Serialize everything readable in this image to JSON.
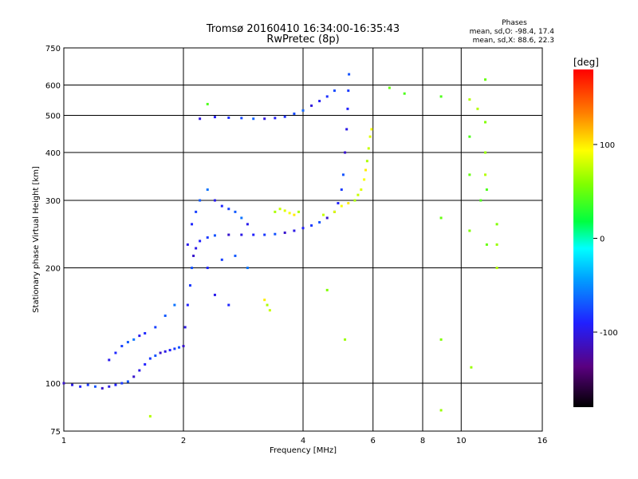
{
  "chart_data": {
    "type": "scatter",
    "title": "Tromsø 20160410 16:34:00-16:35:43",
    "subtitle": "RwPretec (8p)",
    "xlabel": "Frequency [MHz]",
    "ylabel": "Stationary phase Virtual Height [km]",
    "x_scale": "log",
    "y_scale": "log",
    "xlim": [
      1,
      16
    ],
    "ylim": [
      75,
      750
    ],
    "x_ticks": [
      1,
      2,
      4,
      6,
      8,
      10,
      16
    ],
    "x_tick_labels": [
      "1",
      "2",
      "4",
      "6",
      "8",
      "10",
      "16"
    ],
    "y_ticks": [
      75,
      100,
      200,
      300,
      400,
      500,
      600,
      750
    ],
    "y_tick_labels": [
      "75",
      "100",
      "200",
      "300",
      "400",
      "500",
      "600",
      "750"
    ],
    "grid": true,
    "phases": {
      "heading": "Phases",
      "line_o": "mean, sd,O: -98.4, 17.4",
      "line_x": "mean, sd,X: 88.6, 22.3"
    },
    "colorbar": {
      "label": "[deg]",
      "range": [
        -180,
        180
      ],
      "ticks": [
        100,
        0,
        -100
      ],
      "tick_labels": [
        "100",
        "0",
        "-100"
      ]
    },
    "series": [
      {
        "color_group": "blue-purple",
        "phase_deg": -100,
        "points": [
          [
            1.0,
            100
          ],
          [
            1.05,
            99
          ],
          [
            1.1,
            98
          ],
          [
            1.15,
            99
          ],
          [
            1.2,
            98
          ],
          [
            1.25,
            97
          ],
          [
            1.3,
            98
          ],
          [
            1.35,
            99
          ],
          [
            1.4,
            100
          ],
          [
            1.45,
            101
          ],
          [
            1.5,
            104
          ],
          [
            1.55,
            108
          ],
          [
            1.6,
            112
          ],
          [
            1.65,
            116
          ],
          [
            1.7,
            118
          ],
          [
            1.75,
            120
          ],
          [
            1.8,
            121
          ],
          [
            1.85,
            122
          ],
          [
            1.9,
            123
          ],
          [
            1.95,
            124
          ],
          [
            2.0,
            125
          ],
          [
            2.02,
            140
          ],
          [
            2.05,
            160
          ],
          [
            2.08,
            180
          ],
          [
            2.1,
            200
          ],
          [
            2.12,
            215
          ],
          [
            2.15,
            225
          ],
          [
            2.2,
            235
          ],
          [
            2.3,
            240
          ],
          [
            2.4,
            243
          ],
          [
            2.6,
            244
          ],
          [
            2.8,
            244
          ],
          [
            3.0,
            244
          ],
          [
            3.2,
            244
          ],
          [
            3.4,
            245
          ],
          [
            3.6,
            247
          ],
          [
            3.8,
            250
          ],
          [
            4.0,
            254
          ],
          [
            4.2,
            258
          ],
          [
            4.4,
            263
          ],
          [
            4.6,
            270
          ],
          [
            4.8,
            280
          ],
          [
            4.9,
            295
          ],
          [
            5.0,
            320
          ],
          [
            5.05,
            350
          ],
          [
            5.1,
            400
          ],
          [
            5.15,
            460
          ],
          [
            5.18,
            520
          ],
          [
            5.2,
            580
          ],
          [
            5.22,
            640
          ]
        ]
      },
      {
        "color_group": "blue",
        "phase_deg": -90,
        "points": [
          [
            1.3,
            115
          ],
          [
            1.35,
            120
          ],
          [
            1.4,
            125
          ],
          [
            1.45,
            128
          ],
          [
            1.5,
            130
          ],
          [
            1.55,
            133
          ],
          [
            1.6,
            135
          ],
          [
            1.7,
            140
          ],
          [
            1.8,
            150
          ],
          [
            1.9,
            160
          ],
          [
            2.05,
            230
          ],
          [
            2.1,
            260
          ],
          [
            2.15,
            280
          ],
          [
            2.2,
            300
          ],
          [
            2.3,
            320
          ],
          [
            2.4,
            300
          ],
          [
            2.5,
            290
          ],
          [
            2.6,
            285
          ],
          [
            2.7,
            280
          ],
          [
            2.8,
            270
          ],
          [
            2.9,
            260
          ],
          [
            2.3,
            200
          ],
          [
            2.5,
            210
          ],
          [
            2.7,
            215
          ],
          [
            2.9,
            200
          ],
          [
            2.4,
            170
          ],
          [
            2.6,
            160
          ]
        ]
      },
      {
        "color_group": "blue-upper",
        "phase_deg": -95,
        "points": [
          [
            2.2,
            490
          ],
          [
            2.4,
            495
          ],
          [
            2.6,
            493
          ],
          [
            2.8,
            492
          ],
          [
            3.0,
            490
          ],
          [
            3.2,
            490
          ],
          [
            3.4,
            492
          ],
          [
            3.6,
            496
          ],
          [
            3.8,
            505
          ],
          [
            4.0,
            515
          ],
          [
            4.2,
            530
          ],
          [
            4.4,
            545
          ],
          [
            4.6,
            560
          ],
          [
            4.8,
            580
          ]
        ]
      },
      {
        "color_group": "yellow",
        "phase_deg": 90,
        "points": [
          [
            3.4,
            280
          ],
          [
            3.5,
            285
          ],
          [
            3.6,
            282
          ],
          [
            3.7,
            278
          ],
          [
            3.8,
            275
          ],
          [
            3.9,
            280
          ],
          [
            4.5,
            275
          ],
          [
            4.8,
            280
          ],
          [
            5.0,
            290
          ],
          [
            5.2,
            295
          ],
          [
            5.4,
            300
          ],
          [
            5.5,
            310
          ],
          [
            5.6,
            320
          ],
          [
            5.7,
            340
          ],
          [
            5.75,
            360
          ],
          [
            5.8,
            380
          ],
          [
            5.85,
            410
          ],
          [
            5.9,
            440
          ],
          [
            5.95,
            460
          ],
          [
            3.2,
            165
          ],
          [
            3.25,
            160
          ],
          [
            3.3,
            155
          ]
        ]
      },
      {
        "color_group": "scattered",
        "phase_deg": 60,
        "points": [
          [
            8.9,
            560
          ],
          [
            8.9,
            270
          ],
          [
            8.9,
            130
          ],
          [
            8.9,
            85
          ],
          [
            10.5,
            550
          ],
          [
            10.5,
            440
          ],
          [
            10.5,
            350
          ],
          [
            10.5,
            250
          ],
          [
            10.6,
            110
          ],
          [
            11.0,
            520
          ],
          [
            11.2,
            300
          ],
          [
            11.5,
            620
          ],
          [
            11.5,
            480
          ],
          [
            11.5,
            400
          ],
          [
            11.5,
            350
          ],
          [
            11.6,
            320
          ],
          [
            11.6,
            230
          ],
          [
            12.3,
            260
          ],
          [
            12.3,
            230
          ],
          [
            12.3,
            200
          ],
          [
            7.2,
            570
          ],
          [
            6.6,
            590
          ],
          [
            4.6,
            175
          ],
          [
            5.1,
            130
          ],
          [
            1.65,
            82
          ],
          [
            2.3,
            535
          ]
        ]
      }
    ]
  }
}
